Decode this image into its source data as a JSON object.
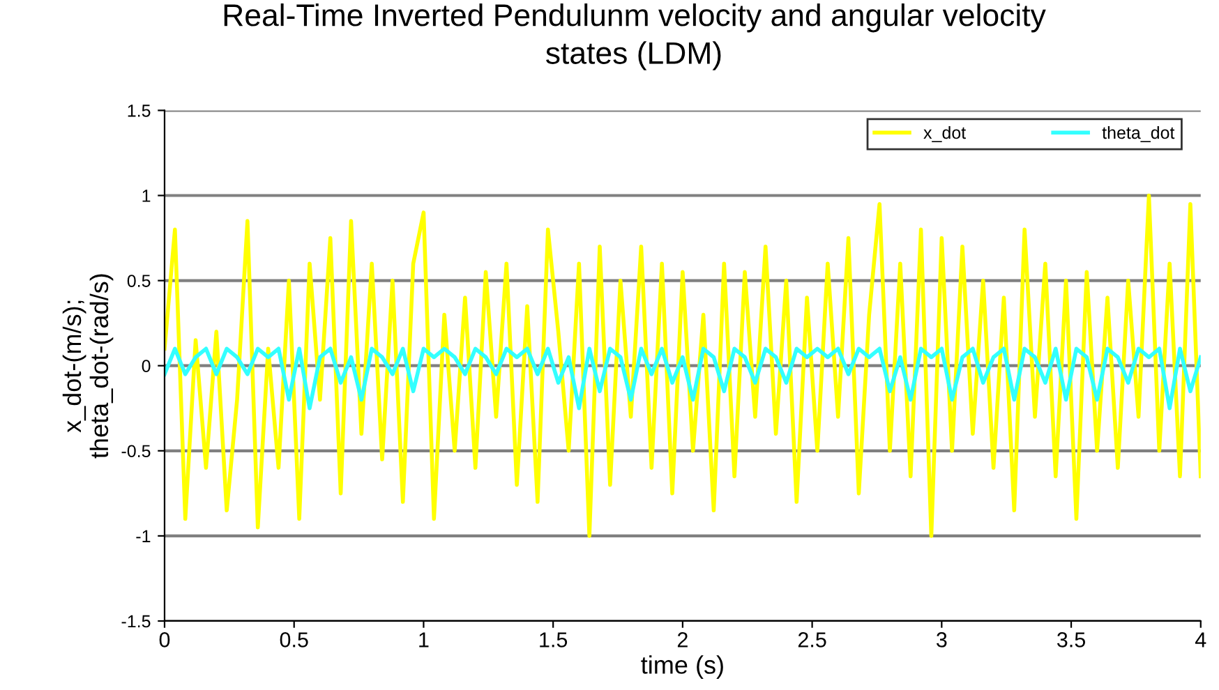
{
  "chart_data": {
    "type": "line",
    "title": "Real-Time Inverted Pendulunm velocity and angular velocity states (LDM)",
    "xlabel": "time (s)",
    "ylabel": "x_dot-(m/s);\ntheta_dot-(rad/s)",
    "x": [
      0,
      0.04,
      0.08,
      0.12,
      0.16,
      0.2,
      0.24,
      0.28,
      0.32,
      0.36,
      0.4,
      0.44,
      0.48,
      0.52,
      0.56,
      0.6,
      0.64,
      0.68,
      0.72,
      0.76,
      0.8,
      0.84,
      0.88,
      0.92,
      0.96,
      1,
      1.04,
      1.08,
      1.12,
      1.16,
      1.2,
      1.24,
      1.28,
      1.32,
      1.36,
      1.4,
      1.44,
      1.48,
      1.52,
      1.56,
      1.6,
      1.64,
      1.68,
      1.72,
      1.76,
      1.8,
      1.84,
      1.88,
      1.92,
      1.96,
      2,
      2.04,
      2.08,
      2.12,
      2.16,
      2.2,
      2.24,
      2.28,
      2.32,
      2.36,
      2.4,
      2.44,
      2.48,
      2.52,
      2.56,
      2.6,
      2.64,
      2.68,
      2.72,
      2.76,
      2.8,
      2.84,
      2.88,
      2.92,
      2.96,
      3,
      3.04,
      3.08,
      3.12,
      3.16,
      3.2,
      3.24,
      3.28,
      3.32,
      3.36,
      3.4,
      3.44,
      3.48,
      3.52,
      3.56,
      3.6,
      3.64,
      3.68,
      3.72,
      3.76,
      3.8,
      3.84,
      3.88,
      3.92,
      3.96,
      4
    ],
    "series": [
      {
        "name": "x_dot",
        "color": "#ffff00",
        "values": [
          0.1,
          0.8,
          -0.9,
          0.15,
          -0.6,
          0.2,
          -0.85,
          -0.2,
          0.85,
          -0.95,
          0.1,
          -0.6,
          0.5,
          -0.9,
          0.6,
          -0.2,
          0.75,
          -0.75,
          0.85,
          -0.4,
          0.6,
          -0.55,
          0.5,
          -0.8,
          0.6,
          0.9,
          -0.9,
          0.3,
          -0.5,
          0.4,
          -0.6,
          0.55,
          -0.3,
          0.6,
          -0.7,
          0.35,
          -0.8,
          0.8,
          0.2,
          -0.5,
          0.6,
          -1.0,
          0.7,
          -0.7,
          0.5,
          -0.3,
          0.7,
          -0.6,
          0.6,
          -0.75,
          0.55,
          -0.5,
          0.3,
          -0.85,
          0.6,
          -0.65,
          0.55,
          -0.3,
          0.7,
          -0.4,
          0.5,
          -0.8,
          0.4,
          -0.5,
          0.6,
          -0.3,
          0.75,
          -0.75,
          0.3,
          0.95,
          -0.5,
          0.6,
          -0.65,
          0.8,
          -1.0,
          0.75,
          -0.5,
          0.7,
          -0.4,
          0.5,
          -0.6,
          0.4,
          -0.85,
          0.8,
          -0.3,
          0.6,
          -0.65,
          0.5,
          -0.9,
          0.55,
          -0.5,
          0.4,
          -0.6,
          0.5,
          -0.3,
          1.0,
          -0.5,
          0.6,
          -0.65,
          0.95,
          -0.65
        ]
      },
      {
        "name": "theta_dot",
        "color": "#33ffff",
        "values": [
          -0.05,
          0.1,
          -0.05,
          0.05,
          0.1,
          -0.05,
          0.1,
          0.05,
          -0.05,
          0.1,
          0.05,
          0.1,
          -0.2,
          0.1,
          -0.25,
          0.05,
          0.1,
          -0.1,
          0.05,
          -0.2,
          0.1,
          0.05,
          -0.05,
          0.1,
          -0.15,
          0.1,
          0.05,
          0.1,
          0.05,
          -0.05,
          0.1,
          0.05,
          -0.05,
          0.1,
          0.05,
          0.1,
          -0.05,
          0.1,
          -0.1,
          0.05,
          -0.25,
          0.1,
          -0.15,
          0.1,
          0.05,
          -0.2,
          0.1,
          -0.05,
          0.1,
          -0.1,
          0.05,
          -0.2,
          0.1,
          0.05,
          -0.15,
          0.1,
          0.05,
          -0.1,
          0.1,
          0.05,
          -0.1,
          0.1,
          0.05,
          0.1,
          0.05,
          0.1,
          -0.05,
          0.1,
          0.05,
          0.1,
          -0.15,
          0.05,
          -0.2,
          0.1,
          0.05,
          0.1,
          -0.2,
          0.05,
          0.1,
          -0.1,
          0.05,
          0.1,
          -0.2,
          0.1,
          0.05,
          -0.1,
          0.1,
          -0.2,
          0.1,
          0.05,
          -0.2,
          0.1,
          0.05,
          -0.1,
          0.1,
          0.05,
          0.1,
          -0.25,
          0.1,
          -0.15,
          0.05
        ]
      }
    ],
    "xlim": [
      0,
      4
    ],
    "ylim": [
      -1.5,
      1.5
    ],
    "xticks": [
      0,
      0.5,
      1,
      1.5,
      2,
      2.5,
      3,
      3.5,
      4
    ],
    "yticks": [
      -1.5,
      -1,
      -0.5,
      0,
      0.5,
      1,
      1.5
    ],
    "grid": "y",
    "legend": "top right",
    "marker": "none",
    "line_style": "solid"
  }
}
